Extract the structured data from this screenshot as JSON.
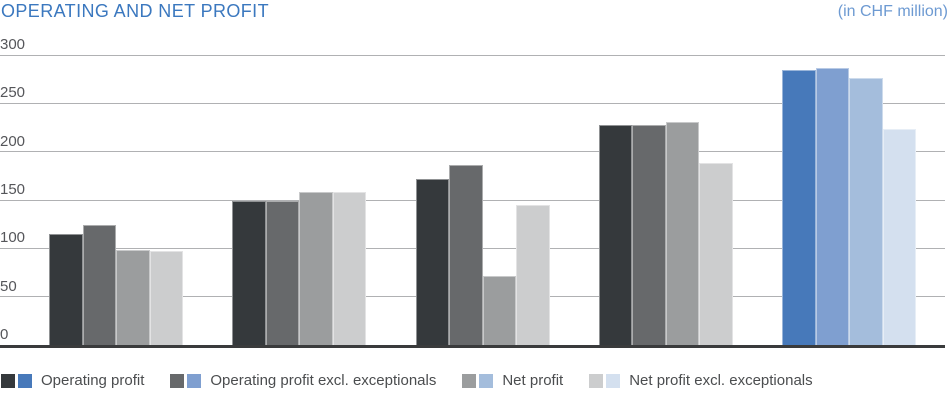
{
  "header": {
    "title": "OPERATING AND NET PROFIT",
    "unit_label": "(in CHF million)"
  },
  "chart_data": {
    "type": "bar",
    "title": "OPERATING AND NET PROFIT",
    "unit": "in CHF million",
    "categories": [
      "",
      "",
      "",
      "",
      ""
    ],
    "series": [
      {
        "name": "Operating profit",
        "values": [
          115,
          149,
          172,
          228,
          284
        ]
      },
      {
        "name": "Operating profit excl. exceptionals",
        "values": [
          124,
          149,
          186,
          228,
          287
        ]
      },
      {
        "name": "Net profit",
        "values": [
          98,
          158,
          71,
          231,
          276
        ]
      },
      {
        "name": "Net profit excl. exceptionals",
        "values": [
          97,
          158,
          145,
          188,
          223
        ]
      }
    ],
    "ylim": [
      0,
      300
    ],
    "yticks": [
      300,
      250,
      200,
      150,
      100,
      50,
      0
    ],
    "grid": true,
    "legend_position": "bottom",
    "highlight_group_index": 4,
    "colors": {
      "gray_series": [
        "#35393c",
        "#67696b",
        "#9b9d9e",
        "#cccdce"
      ],
      "blue_series": [
        "#4779ba",
        "#7f9fd0",
        "#a4bddc",
        "#d4e0ef"
      ],
      "title": "#3b78bf",
      "unit_label": "#6d9ad2",
      "axis_text": "#55565a",
      "gridline": "#b0b1b3",
      "baseline": "#3a3b3c"
    }
  },
  "legend": {
    "items": [
      {
        "label": "Operating profit",
        "gray": "#35393c",
        "blue": "#4779ba"
      },
      {
        "label": "Operating profit excl. exceptionals",
        "gray": "#67696b",
        "blue": "#7f9fd0"
      },
      {
        "label": "Net profit",
        "gray": "#9b9d9e",
        "blue": "#a4bddc"
      },
      {
        "label": "Net profit excl. exceptionals",
        "gray": "#cccdce",
        "blue": "#d4e0ef"
      }
    ]
  }
}
